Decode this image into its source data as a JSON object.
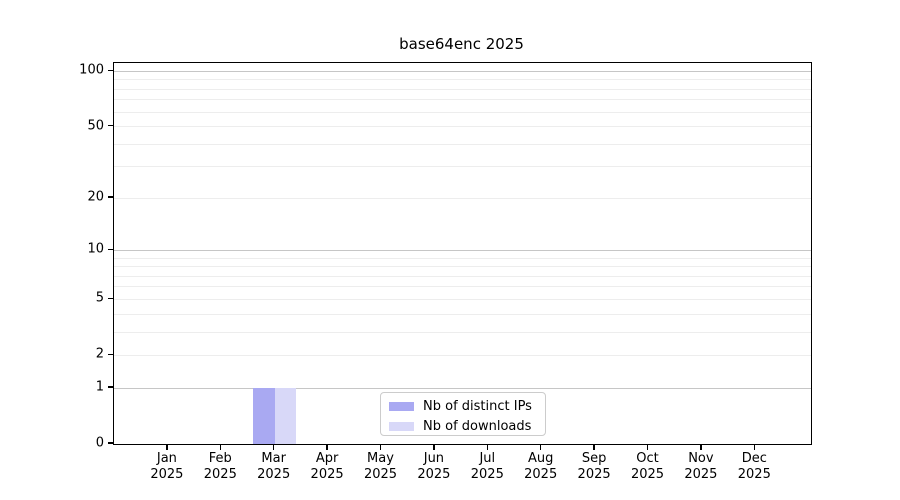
{
  "chart_data": {
    "type": "bar",
    "title": "base64enc 2025",
    "categories": [
      "Jan",
      "Feb",
      "Mar",
      "Apr",
      "May",
      "Jun",
      "Jul",
      "Aug",
      "Sep",
      "Oct",
      "Nov",
      "Dec"
    ],
    "category_sublabel": "2025",
    "series": [
      {
        "name": "Nb of distinct IPs",
        "color": "#a9a9f2",
        "values": [
          0,
          0,
          1,
          0,
          0,
          0,
          0,
          0,
          0,
          0,
          0,
          0
        ]
      },
      {
        "name": "Nb of downloads",
        "color": "#d8d8f8",
        "values": [
          0,
          0,
          1,
          0,
          0,
          0,
          0,
          0,
          0,
          0,
          0,
          0
        ]
      }
    ],
    "yscale": "log1p",
    "yticks": [
      100,
      50,
      20,
      10,
      5,
      2,
      1,
      0
    ],
    "ylim": [
      0,
      111
    ],
    "grid": {
      "major_values": [
        1,
        10,
        100
      ],
      "minor_values": [
        2,
        3,
        4,
        5,
        6,
        7,
        8,
        9,
        20,
        30,
        40,
        50,
        60,
        70,
        80,
        90
      ],
      "major_color": "#c6c6c6",
      "minor_color": "#ededed"
    },
    "legend": {
      "position": "lower-center"
    },
    "axis_color": "#000000",
    "background": "#ffffff"
  }
}
